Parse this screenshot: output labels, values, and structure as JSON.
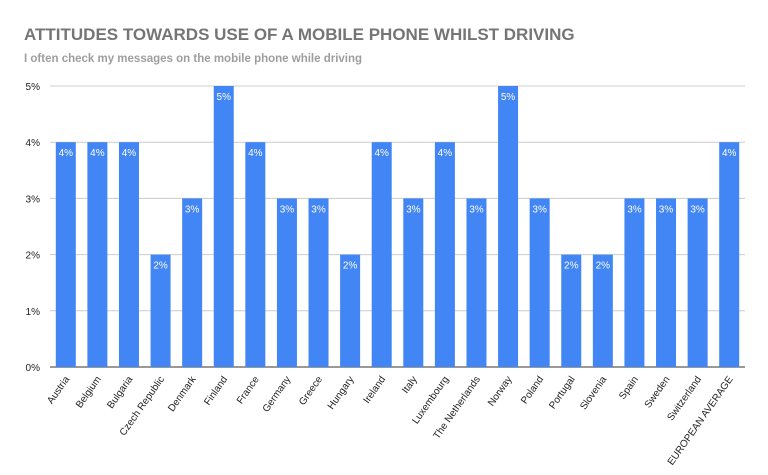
{
  "chart_data": {
    "type": "bar",
    "title": "ATTITUDES TOWARDS USE OF A MOBILE PHONE WHILST DRIVING",
    "subtitle": "I often check my messages on the mobile phone while driving",
    "xlabel": "",
    "ylabel": "",
    "ylim": [
      0,
      5
    ],
    "yticks": [
      "0%",
      "1%",
      "2%",
      "3%",
      "4%",
      "5%"
    ],
    "grid": true,
    "legend": "none",
    "bar_color": "#4285f4",
    "categories": [
      "Austria",
      "Belgium",
      "Bulgaria",
      "Czech Republic",
      "Denmark",
      "Finland",
      "France",
      "Germany",
      "Greece",
      "Hungary",
      "Ireland",
      "Italy",
      "Luxembourg",
      "The Netherlands",
      "Norway",
      "Poland",
      "Portugal",
      "Slovenia",
      "Spain",
      "Sweden",
      "Switzerland",
      "EUROPEAN AVERAGE"
    ],
    "values": [
      4,
      4,
      4,
      2,
      3,
      5,
      4,
      3,
      3,
      2,
      4,
      3,
      4,
      3,
      5,
      3,
      2,
      2,
      3,
      3,
      3,
      4
    ],
    "data_labels": [
      "4%",
      "4%",
      "4%",
      "2%",
      "3%",
      "5%",
      "4%",
      "3%",
      "3%",
      "2%",
      "4%",
      "3%",
      "4%",
      "3%",
      "5%",
      "3%",
      "2%",
      "2%",
      "3%",
      "3%",
      "3%",
      "4%"
    ]
  }
}
